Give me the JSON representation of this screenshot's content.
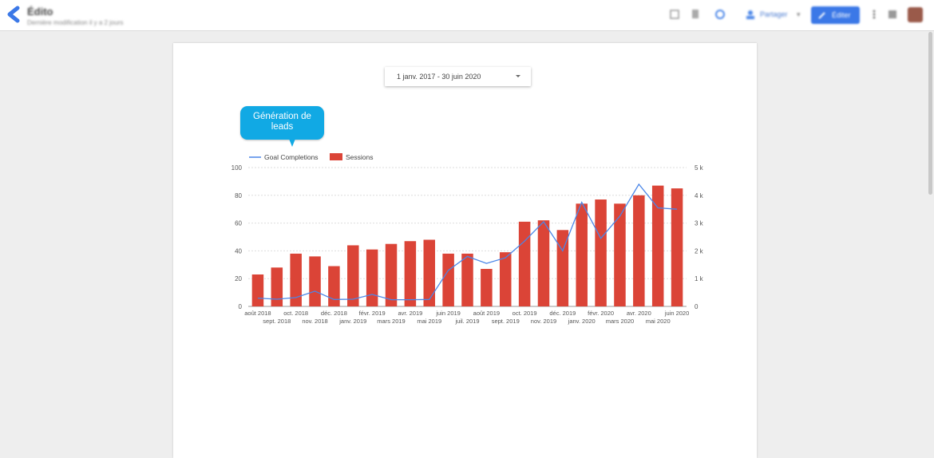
{
  "toolbar": {
    "app_title": "Édito",
    "subtitle": "Dernière modification il y a 2 jours",
    "share_label": "Partager",
    "edit_label": "Éditer"
  },
  "date_range": {
    "label": "1 janv. 2017 - 30 juin 2020"
  },
  "callout": {
    "line1": "Génération de",
    "line2": "leads"
  },
  "chart_data": {
    "type": "bar",
    "title": "",
    "legend": {
      "position": "top-left",
      "entries": [
        "Goal Completions",
        "Sessions"
      ]
    },
    "colors": {
      "line": "#4a86e8",
      "bars": "#db4437",
      "grid": "#dddddd"
    },
    "grid": true,
    "categories": [
      "août 2018",
      "sept. 2018",
      "oct. 2018",
      "nov. 2018",
      "déc. 2018",
      "janv. 2019",
      "févr. 2019",
      "mars 2019",
      "avr. 2019",
      "mai 2019",
      "juin 2019",
      "juil. 2019",
      "août 2019",
      "sept. 2019",
      "oct. 2019",
      "nov. 2019",
      "déc. 2019",
      "janv. 2020",
      "févr. 2020",
      "mars 2020",
      "avr. 2020",
      "mai 2020",
      "juin 2020"
    ],
    "left_axis": {
      "ylim": [
        0,
        100
      ],
      "ticks": [
        "0",
        "20",
        "40",
        "60",
        "80",
        "100"
      ]
    },
    "right_axis": {
      "ylim": [
        0,
        5000
      ],
      "ticks": [
        "0",
        "1 k",
        "2 k",
        "3 k",
        "4 k",
        "5 k"
      ]
    },
    "series": [
      {
        "name": "Sessions",
        "type": "bar",
        "axis": "left",
        "values": [
          23,
          28,
          38,
          36,
          29,
          44,
          41,
          45,
          47,
          48,
          38,
          38,
          27,
          39,
          61,
          62,
          55,
          74,
          77,
          74,
          80,
          87,
          85
        ]
      },
      {
        "name": "Goal Completions",
        "type": "line",
        "axis": "right",
        "values": [
          300,
          260,
          320,
          550,
          250,
          260,
          430,
          240,
          240,
          250,
          1300,
          1800,
          1550,
          1750,
          2350,
          3050,
          2000,
          3750,
          2450,
          3250,
          4400,
          3550,
          3500
        ]
      }
    ]
  }
}
